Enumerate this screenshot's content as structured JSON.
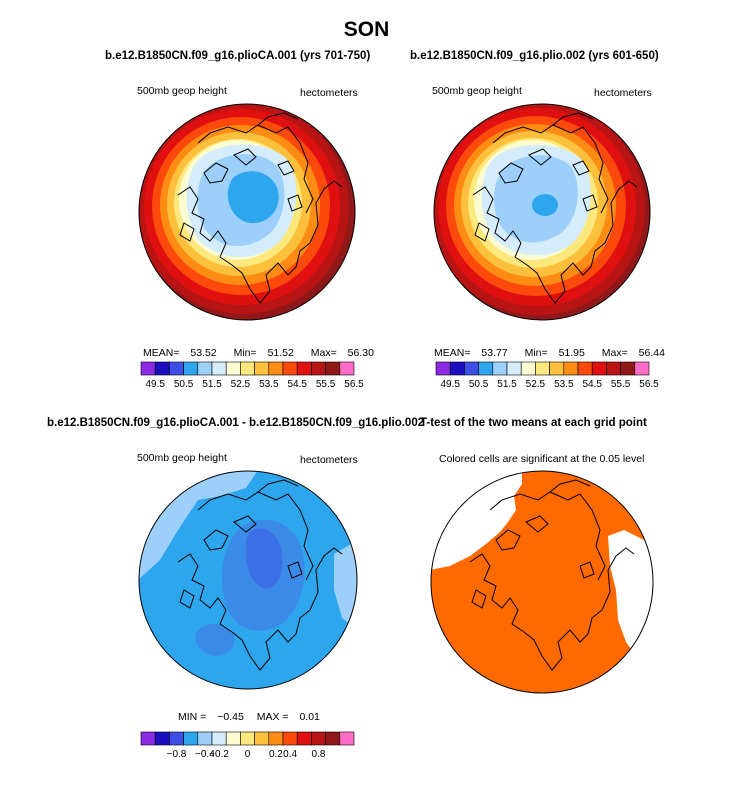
{
  "figure": {
    "title": "SON"
  },
  "chart_data": [
    {
      "type": "heatmap",
      "projection": "north polar stereographic",
      "title": "b.e12.B1850CN.f09_g16.plioCA.001 (yrs 701-750)",
      "left_label": "500mb geop height",
      "right_label": "hectometers",
      "stats": {
        "mean_label": "MEAN=",
        "mean": "53.52",
        "min_label": "Min=",
        "min": "51.52",
        "max_label": "Max=",
        "max": "56.30"
      },
      "colorbar": {
        "ticks": [
          "49.5",
          "50.5",
          "51.5",
          "52.5",
          "53.5",
          "54.5",
          "55.5",
          "56.5"
        ],
        "colors": [
          "#8a2be2",
          "#1a0ec0",
          "#3c4ee6",
          "#2ea6ee",
          "#9cd0fa",
          "#d4ecfc",
          "#fcfcd2",
          "#fce87c",
          "#fcc03c",
          "#fc8c14",
          "#fc4a0c",
          "#e01010",
          "#b81414",
          "#901818",
          "#fc6cc4"
        ]
      }
    },
    {
      "type": "heatmap",
      "projection": "north polar stereographic",
      "title": "b.e12.B1850CN.f09_g16.plio.002 (yrs 601-650)",
      "left_label": "500mb geop height",
      "right_label": "hectometers",
      "stats": {
        "mean_label": "MEAN=",
        "mean": "53.77",
        "min_label": "Min=",
        "min": "51.95",
        "max_label": "Max=",
        "max": "56.44"
      },
      "colorbar": {
        "ticks": [
          "49.5",
          "50.5",
          "51.5",
          "52.5",
          "53.5",
          "54.5",
          "55.5",
          "56.5"
        ],
        "colors": [
          "#8a2be2",
          "#1a0ec0",
          "#3c4ee6",
          "#2ea6ee",
          "#9cd0fa",
          "#d4ecfc",
          "#fcfcd2",
          "#fce87c",
          "#fcc03c",
          "#fc8c14",
          "#fc4a0c",
          "#e01010",
          "#b81414",
          "#901818",
          "#fc6cc4"
        ]
      }
    },
    {
      "type": "heatmap",
      "projection": "north polar stereographic",
      "title": "b.e12.B1850CN.f09_g16.plioCA.001 - b.e12.B1850CN.f09_g16.plio.002",
      "left_label": "500mb geop height",
      "right_label": "hectometers",
      "stats": {
        "min_label": "MIN =",
        "min": "−0.45",
        "max_label": "MAX =",
        "max": "0.01"
      },
      "colorbar": {
        "ticks": [
          "−0.8",
          "−0.4",
          "−0.2",
          "0",
          "0.2",
          "0.4",
          "0.8"
        ],
        "colors": [
          "#8a2be2",
          "#1a0ec0",
          "#3c4ee6",
          "#2ea6ee",
          "#9cd0fa",
          "#d4ecfc",
          "#fcfcd2",
          "#fce87c",
          "#fcc03c",
          "#fc8c14",
          "#fc4a0c",
          "#e01010",
          "#b81414",
          "#901818",
          "#fc6cc4"
        ]
      }
    },
    {
      "type": "heatmap",
      "projection": "north polar stereographic",
      "title": "T-test of the two means at each grid point",
      "left_label": "Colored cells are significant at the 0.05 level",
      "significant_color": "#ff6a00"
    }
  ]
}
